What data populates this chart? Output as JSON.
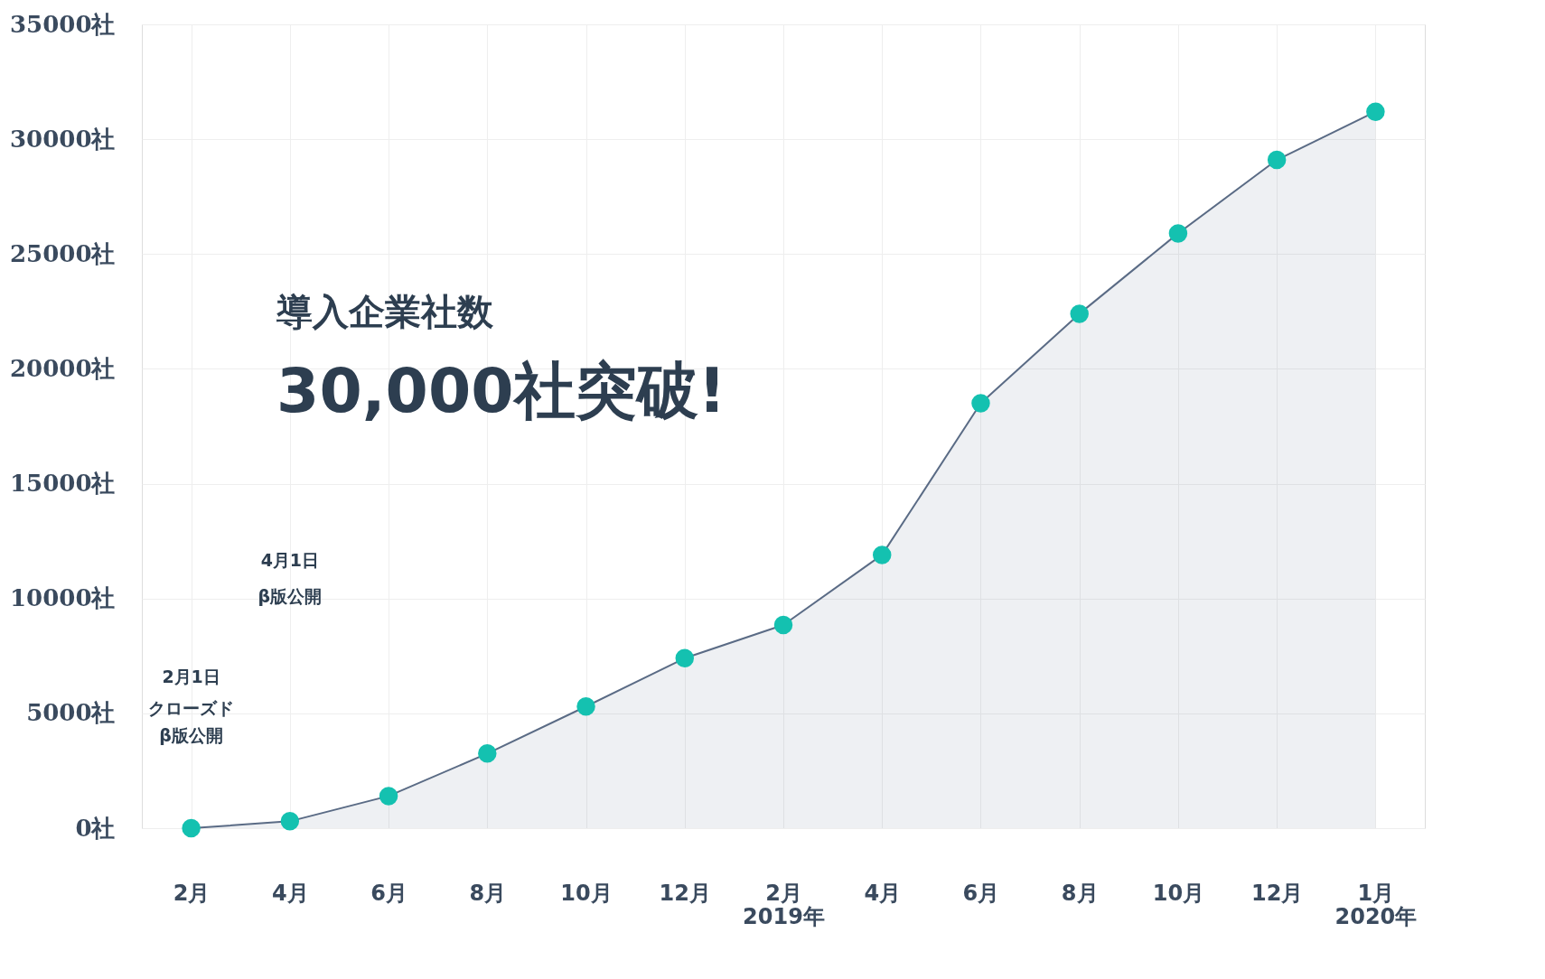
{
  "chart_data": {
    "type": "area",
    "categories": [
      "2月",
      "4月",
      "6月",
      "8月",
      "10月",
      "12月",
      "2月\n2019年",
      "4月",
      "6月",
      "8月",
      "10月",
      "12月",
      "1月\n2020年"
    ],
    "series": [
      {
        "color": "#5a6b85",
        "values": [
          0,
          300,
          1400,
          3250,
          5300,
          7400,
          8850,
          11900,
          18500,
          22400,
          25900,
          29100,
          31200
        ]
      },
      {
        "type": "scatter",
        "marker": "circle",
        "color": "#14c1b0",
        "values": [
          0,
          300,
          1400,
          3250,
          5300,
          7400,
          8850,
          11900,
          18500,
          22400,
          25900,
          29100,
          31200
        ]
      }
    ],
    "ylim": [
      0,
      35000
    ],
    "yticks": [
      {
        "value": 0,
        "label": "0社"
      },
      {
        "value": 5000,
        "label": "5000社"
      },
      {
        "value": 10000,
        "label": "10000社"
      },
      {
        "value": 15000,
        "label": "15000社"
      },
      {
        "value": 20000,
        "label": "20000社"
      },
      {
        "value": 25000,
        "label": "25000社"
      },
      {
        "value": 30000,
        "label": "30000社"
      },
      {
        "value": 35000,
        "label": "35000社"
      }
    ],
    "grid": true,
    "line_style": "solid",
    "annotations": [
      "導入企業社数",
      "30,000社突破!",
      "2月1日",
      "クローズド",
      "β版公開",
      "4月1日",
      "β版公開"
    ]
  }
}
